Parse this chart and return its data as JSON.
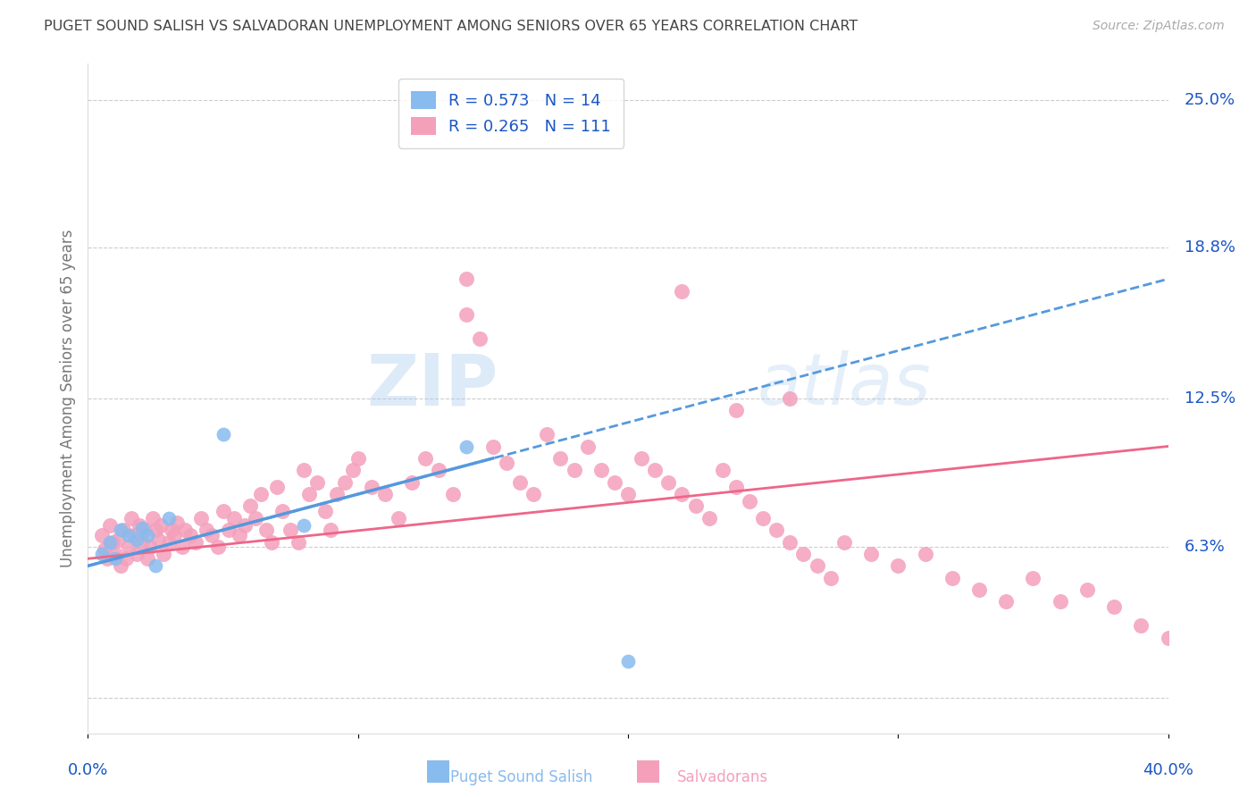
{
  "title": "PUGET SOUND SALISH VS SALVADORAN UNEMPLOYMENT AMONG SENIORS OVER 65 YEARS CORRELATION CHART",
  "source": "Source: ZipAtlas.com",
  "ylabel": "Unemployment Among Seniors over 65 years",
  "xlim": [
    0.0,
    0.4
  ],
  "ylim": [
    -0.015,
    0.265
  ],
  "ytick_positions": [
    0.0,
    0.063,
    0.125,
    0.188,
    0.25
  ],
  "ytick_labels": [
    "",
    "6.3%",
    "12.5%",
    "18.8%",
    "25.0%"
  ],
  "watermark_zip": "ZIP",
  "watermark_atlas": "atlas",
  "salish_R": 0.573,
  "salish_N": 14,
  "salvadoran_R": 0.265,
  "salvadoran_N": 111,
  "salish_color": "#88bbee",
  "salvadoran_color": "#f4a0bb",
  "salish_line_color": "#5599dd",
  "salvadoran_line_color": "#ee6688",
  "legend_text_color": "#1a56c4",
  "title_color": "#444444",
  "right_tick_color": "#1a56c4",
  "background_color": "#ffffff",
  "grid_color": "#cccccc",
  "salish_x": [
    0.005,
    0.008,
    0.01,
    0.012,
    0.015,
    0.018,
    0.02,
    0.022,
    0.025,
    0.03,
    0.05,
    0.14,
    0.2,
    0.08
  ],
  "salish_y": [
    0.06,
    0.065,
    0.058,
    0.07,
    0.068,
    0.066,
    0.071,
    0.068,
    0.055,
    0.075,
    0.11,
    0.105,
    0.015,
    0.072
  ],
  "salvadoran_x": [
    0.005,
    0.006,
    0.007,
    0.008,
    0.009,
    0.01,
    0.011,
    0.012,
    0.013,
    0.014,
    0.015,
    0.016,
    0.017,
    0.018,
    0.019,
    0.02,
    0.021,
    0.022,
    0.023,
    0.024,
    0.025,
    0.026,
    0.027,
    0.028,
    0.03,
    0.031,
    0.032,
    0.033,
    0.035,
    0.036,
    0.038,
    0.04,
    0.042,
    0.044,
    0.046,
    0.048,
    0.05,
    0.052,
    0.054,
    0.056,
    0.058,
    0.06,
    0.062,
    0.064,
    0.066,
    0.068,
    0.07,
    0.072,
    0.075,
    0.078,
    0.08,
    0.082,
    0.085,
    0.088,
    0.09,
    0.092,
    0.095,
    0.098,
    0.1,
    0.105,
    0.11,
    0.115,
    0.12,
    0.125,
    0.13,
    0.135,
    0.14,
    0.145,
    0.15,
    0.155,
    0.16,
    0.165,
    0.17,
    0.175,
    0.18,
    0.185,
    0.19,
    0.195,
    0.2,
    0.205,
    0.21,
    0.215,
    0.22,
    0.225,
    0.23,
    0.235,
    0.24,
    0.245,
    0.25,
    0.255,
    0.26,
    0.265,
    0.27,
    0.275,
    0.28,
    0.29,
    0.3,
    0.31,
    0.32,
    0.33,
    0.34,
    0.35,
    0.36,
    0.37,
    0.38,
    0.39,
    0.4,
    0.22,
    0.24,
    0.26,
    0.14
  ],
  "salvadoran_y": [
    0.068,
    0.062,
    0.058,
    0.072,
    0.065,
    0.06,
    0.066,
    0.055,
    0.07,
    0.058,
    0.063,
    0.075,
    0.068,
    0.06,
    0.072,
    0.065,
    0.07,
    0.058,
    0.063,
    0.075,
    0.07,
    0.066,
    0.072,
    0.06,
    0.065,
    0.07,
    0.068,
    0.073,
    0.063,
    0.07,
    0.068,
    0.065,
    0.075,
    0.07,
    0.068,
    0.063,
    0.078,
    0.07,
    0.075,
    0.068,
    0.072,
    0.08,
    0.075,
    0.085,
    0.07,
    0.065,
    0.088,
    0.078,
    0.07,
    0.065,
    0.095,
    0.085,
    0.09,
    0.078,
    0.07,
    0.085,
    0.09,
    0.095,
    0.1,
    0.088,
    0.085,
    0.075,
    0.09,
    0.1,
    0.095,
    0.085,
    0.16,
    0.15,
    0.105,
    0.098,
    0.09,
    0.085,
    0.11,
    0.1,
    0.095,
    0.105,
    0.095,
    0.09,
    0.085,
    0.1,
    0.095,
    0.09,
    0.085,
    0.08,
    0.075,
    0.095,
    0.088,
    0.082,
    0.075,
    0.07,
    0.065,
    0.06,
    0.055,
    0.05,
    0.065,
    0.06,
    0.055,
    0.06,
    0.05,
    0.045,
    0.04,
    0.05,
    0.04,
    0.045,
    0.038,
    0.03,
    0.025,
    0.17,
    0.12,
    0.125,
    0.175
  ],
  "salish_trend_x": [
    0.0,
    0.4
  ],
  "salish_trend_y_start": 0.055,
  "salish_trend_y_end": 0.175,
  "salvadoran_trend_x": [
    0.0,
    0.4
  ],
  "salvadoran_trend_y_start": 0.058,
  "salvadoran_trend_y_end": 0.105
}
